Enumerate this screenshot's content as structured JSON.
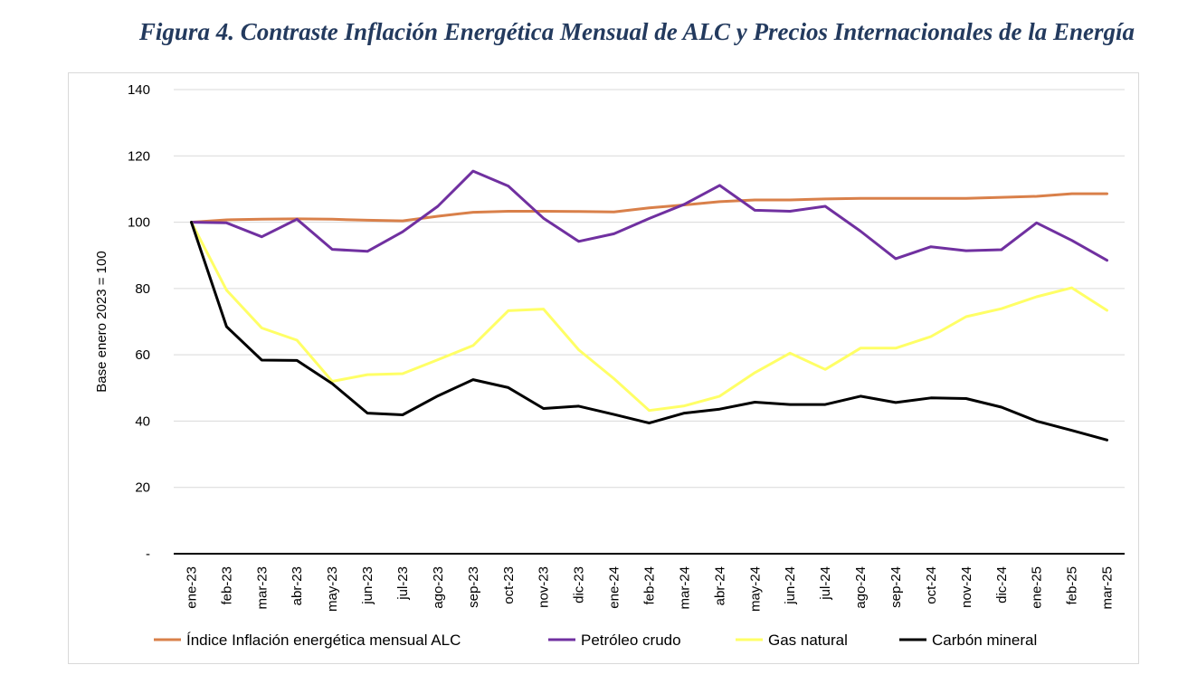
{
  "figure": {
    "title": "Figura 4. Contraste Inflación Energética Mensual de ALC y Precios Internacionales de la Energía"
  },
  "chart_data": {
    "type": "line",
    "title": "Figura 4. Contraste Inflación Energética Mensual de ALC y Precios Internacionales de la Energía",
    "xlabel": "",
    "ylabel": "Base enero 2023 = 100",
    "ylim": [
      0,
      140
    ],
    "yticks": [
      0,
      20,
      40,
      60,
      80,
      100,
      120,
      140
    ],
    "ytick_labels": [
      "-",
      "20",
      "40",
      "60",
      "80",
      "100",
      "120",
      "140"
    ],
    "grid": "horizontal",
    "legend_position": "bottom",
    "categories": [
      "ene-23",
      "feb-23",
      "mar-23",
      "abr-23",
      "may-23",
      "jun-23",
      "jul-23",
      "ago-23",
      "sep-23",
      "oct-23",
      "nov-23",
      "dic-23",
      "ene-24",
      "feb-24",
      "mar-24",
      "abr-24",
      "may-24",
      "jun-24",
      "jul-24",
      "ago-24",
      "sep-24",
      "oct-24",
      "nov-24",
      "dic-24",
      "ene-25",
      "feb-25",
      "mar-25"
    ],
    "series": [
      {
        "name": "Índice Inflación energética mensual ALC",
        "color": "#d9804a",
        "values": [
          100,
          100.7,
          100.9,
          101,
          100.9,
          100.6,
          100.4,
          101.8,
          103,
          103.3,
          103.3,
          103.2,
          103.1,
          104.3,
          105.2,
          106.2,
          106.7,
          106.7,
          107,
          107.2,
          107.2,
          107.2,
          107.2,
          107.5,
          107.8,
          108.6,
          108.6
        ]
      },
      {
        "name": "Petróleo crudo",
        "color": "#7030a0",
        "values": [
          100,
          99.8,
          95.6,
          100.9,
          91.8,
          91.2,
          97.1,
          104.8,
          115.4,
          110.9,
          101.2,
          94.2,
          96.5,
          101.1,
          105.4,
          111.1,
          103.6,
          103.3,
          104.8,
          97.3,
          89,
          92.6,
          91.4,
          91.7,
          99.8,
          94.5,
          88.5
        ]
      },
      {
        "name": "Gas natural",
        "color": "#ffff66",
        "values": [
          100,
          79.5,
          68.1,
          64.4,
          52,
          54,
          54.3,
          58.5,
          62.8,
          73.3,
          73.8,
          61.5,
          52.8,
          43.2,
          44.6,
          47.5,
          54.6,
          60.5,
          55.6,
          62,
          62,
          65.5,
          71.5,
          73.9,
          77.5,
          80.2,
          73.4
        ]
      },
      {
        "name": "Carbón mineral",
        "color": "#000000",
        "values": [
          100,
          68.5,
          58.4,
          58.3,
          51.3,
          42.4,
          41.9,
          47.6,
          52.5,
          50.1,
          43.8,
          44.5,
          42,
          39.4,
          42.4,
          43.6,
          45.7,
          45,
          45,
          47.5,
          45.6,
          47,
          46.8,
          44.2,
          40,
          37.2,
          34.3
        ]
      }
    ]
  }
}
